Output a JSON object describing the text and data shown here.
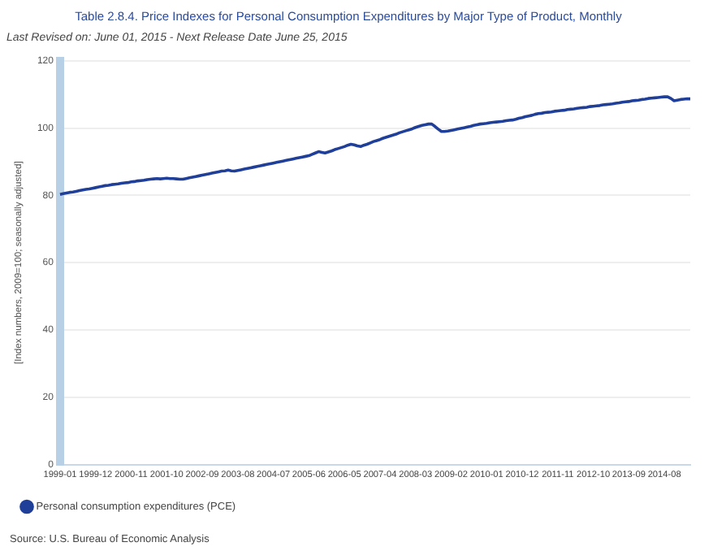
{
  "chart_data": {
    "type": "line",
    "title": "Table 2.8.4. Price Indexes for Personal Consumption Expenditures by Major Type of Product, Monthly",
    "subtitle": "Last Revised on: June 01, 2015 - Next Release Date June 25, 2015",
    "ylabel": "[Index numbers, 2009=100; seasonally adjusted]",
    "categories": [
      "1999-01",
      null,
      null,
      null,
      null,
      null,
      null,
      null,
      null,
      null,
      null,
      "1999-12",
      null,
      null,
      null,
      null,
      null,
      null,
      null,
      null,
      null,
      null,
      "2000-11",
      null,
      null,
      null,
      null,
      null,
      null,
      null,
      null,
      null,
      null,
      "2001-10",
      null,
      null,
      null,
      null,
      null,
      null,
      null,
      null,
      null,
      null,
      "2002-09",
      null,
      null,
      null,
      null,
      null,
      null,
      null,
      null,
      null,
      null,
      "2003-08",
      null,
      null,
      null,
      null,
      null,
      null,
      null,
      null,
      null,
      null,
      "2004-07",
      null,
      null,
      null,
      null,
      null,
      null,
      null,
      null,
      null,
      null,
      "2005-06",
      null,
      null,
      null,
      null,
      null,
      null,
      null,
      null,
      null,
      null,
      "2006-05",
      null,
      null,
      null,
      null,
      null,
      null,
      null,
      null,
      null,
      null,
      "2007-04",
      null,
      null,
      null,
      null,
      null,
      null,
      null,
      null,
      null,
      null,
      "2008-03",
      null,
      null,
      null,
      null,
      null,
      null,
      null,
      null,
      null,
      null,
      "2009-02",
      null,
      null,
      null,
      null,
      null,
      null,
      null,
      null,
      null,
      null,
      "2010-01",
      null,
      null,
      null,
      null,
      null,
      null,
      null,
      null,
      null,
      null,
      "2010-12",
      null,
      null,
      null,
      null,
      null,
      null,
      null,
      null,
      null,
      null,
      "2011-11",
      null,
      null,
      null,
      null,
      null,
      null,
      null,
      null,
      null,
      null,
      "2012-10",
      null,
      null,
      null,
      null,
      null,
      null,
      null,
      null,
      null,
      null,
      "2013-09",
      null,
      null,
      null,
      null,
      null,
      null,
      null,
      null,
      null,
      null,
      "2014-08",
      null,
      null,
      null,
      null,
      null,
      null,
      null,
      null
    ],
    "series": [
      {
        "name": "Personal consumption expenditures (PCE)",
        "color": "#1f3f99",
        "values": [
          80.3,
          80.5,
          80.7,
          80.9,
          81.0,
          81.2,
          81.4,
          81.6,
          81.8,
          81.9,
          82.1,
          82.3,
          82.5,
          82.7,
          82.9,
          83.0,
          83.2,
          83.3,
          83.4,
          83.6,
          83.7,
          83.8,
          84.0,
          84.1,
          84.3,
          84.4,
          84.5,
          84.7,
          84.8,
          84.9,
          85.0,
          84.9,
          85.0,
          85.1,
          85.0,
          85.0,
          84.9,
          84.8,
          84.8,
          85.0,
          85.2,
          85.4,
          85.6,
          85.8,
          86.0,
          86.2,
          86.4,
          86.6,
          86.8,
          87.0,
          87.2,
          87.3,
          87.5,
          87.3,
          87.2,
          87.4,
          87.6,
          87.8,
          88.0,
          88.2,
          88.4,
          88.6,
          88.8,
          89.0,
          89.2,
          89.4,
          89.6,
          89.8,
          90.0,
          90.2,
          90.4,
          90.6,
          90.8,
          91.0,
          91.2,
          91.4,
          91.6,
          91.8,
          92.2,
          92.6,
          93.0,
          92.8,
          92.6,
          92.9,
          93.2,
          93.6,
          93.9,
          94.2,
          94.5,
          94.9,
          95.2,
          95.0,
          94.7,
          94.5,
          94.9,
          95.2,
          95.6,
          96.0,
          96.3,
          96.6,
          97.0,
          97.3,
          97.6,
          97.9,
          98.2,
          98.6,
          98.9,
          99.2,
          99.5,
          99.8,
          100.2,
          100.5,
          100.8,
          101.0,
          101.2,
          101.2,
          100.5,
          99.7,
          99.0,
          99.0,
          99.1,
          99.3,
          99.5,
          99.7,
          99.9,
          100.1,
          100.3,
          100.5,
          100.8,
          101.0,
          101.2,
          101.3,
          101.4,
          101.6,
          101.7,
          101.8,
          101.9,
          102.0,
          102.2,
          102.3,
          102.4,
          102.6,
          102.9,
          103.1,
          103.4,
          103.6,
          103.8,
          104.1,
          104.3,
          104.4,
          104.6,
          104.7,
          104.8,
          105.0,
          105.1,
          105.2,
          105.3,
          105.5,
          105.6,
          105.7,
          105.9,
          106.0,
          106.1,
          106.2,
          106.4,
          106.5,
          106.6,
          106.7,
          106.9,
          107.0,
          107.1,
          107.2,
          107.4,
          107.5,
          107.7,
          107.8,
          107.9,
          108.1,
          108.2,
          108.3,
          108.5,
          108.6,
          108.8,
          108.9,
          109.0,
          109.1,
          109.2,
          109.3,
          109.3,
          108.8,
          108.1,
          108.3,
          108.5,
          108.6,
          108.7,
          108.7
        ]
      }
    ],
    "ylim": [
      0,
      120
    ],
    "yticks": [
      0,
      20,
      40,
      60,
      80,
      100,
      120
    ],
    "grid": "y",
    "legend": "bottom left",
    "annotations": [
      "Source: U.S. Bureau of Economic Analysis"
    ]
  }
}
